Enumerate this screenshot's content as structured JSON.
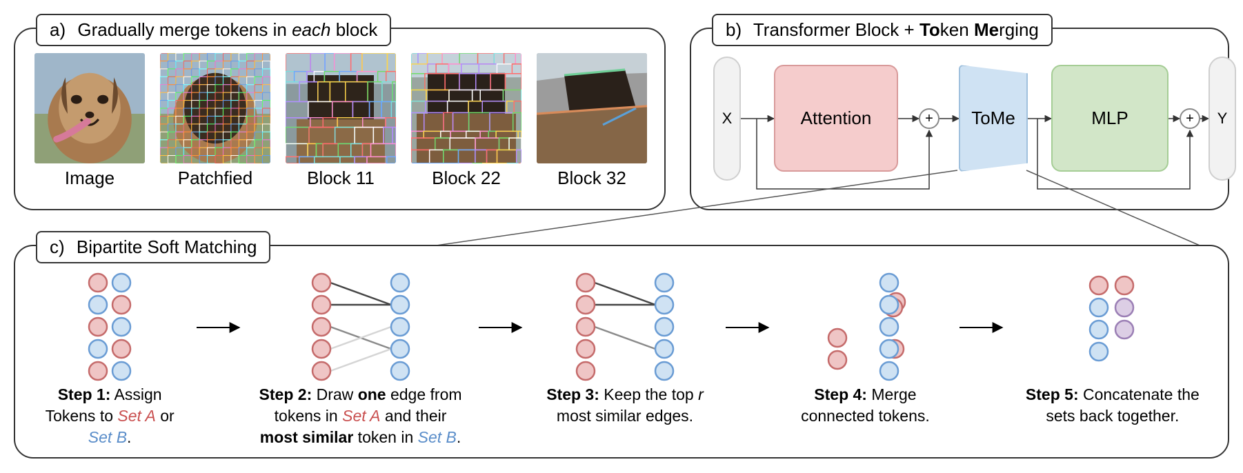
{
  "panelA": {
    "letter": "a)",
    "title_prefix": "Gradually merge tokens in ",
    "title_em": "each",
    "title_suffix": " block",
    "thumbs": [
      "Image",
      "Patchfied",
      "Block 11",
      "Block 22",
      "Block 32"
    ]
  },
  "panelB": {
    "letter": "b)",
    "title_prefix": "Transformer Block + ",
    "title_b1": "To",
    "title_mid": "ken ",
    "title_b2": "Me",
    "title_suffix": "rging",
    "nodes": {
      "x": "X",
      "attention": "Attention",
      "tome": "ToMe",
      "mlp": "MLP",
      "y": "Y",
      "plus": "+"
    },
    "colors": {
      "attention_bg": "#f5cccc",
      "tome_bg": "#cfe2f3",
      "mlp_bg": "#d2e6c8",
      "io_bg": "#f2f2f2"
    }
  },
  "panelC": {
    "letter": "c)",
    "title": "Bipartite Soft Matching",
    "steps": [
      {
        "bold": "Step 1:",
        "rest": " Assign Tokens to ",
        "setA": "Set A",
        "mid": " or ",
        "setB": "Set B",
        "tail": "."
      },
      {
        "bold": "Step 2:",
        "rest": " Draw ",
        "b2": "one",
        "r2": " edge from tokens in ",
        "setA": "Set A",
        "mid2": " and their ",
        "b3": "most similar",
        "r3": " token in ",
        "setB": "Set B",
        "tail": "."
      },
      {
        "bold": "Step 3:",
        "rest": " Keep the top ",
        "em": "r",
        "tail": " most similar edges."
      },
      {
        "bold": "Step 4:",
        "rest": " Merge connected tokens."
      },
      {
        "bold": "Step 5:",
        "rest": " Concatenate the sets back together."
      }
    ],
    "colors": {
      "tokA_fill": "#efc5c5",
      "tokA_stroke": "#c56b6b",
      "tokB_fill": "#cfe2f3",
      "tokB_stroke": "#6a9cd4",
      "tokM_fill": "#dccee5",
      "tokM_stroke": "#9b7fb5",
      "edge_dark": "#454545",
      "edge_gray": "#8a8a8a",
      "edge_light": "#d5d5d5"
    }
  }
}
